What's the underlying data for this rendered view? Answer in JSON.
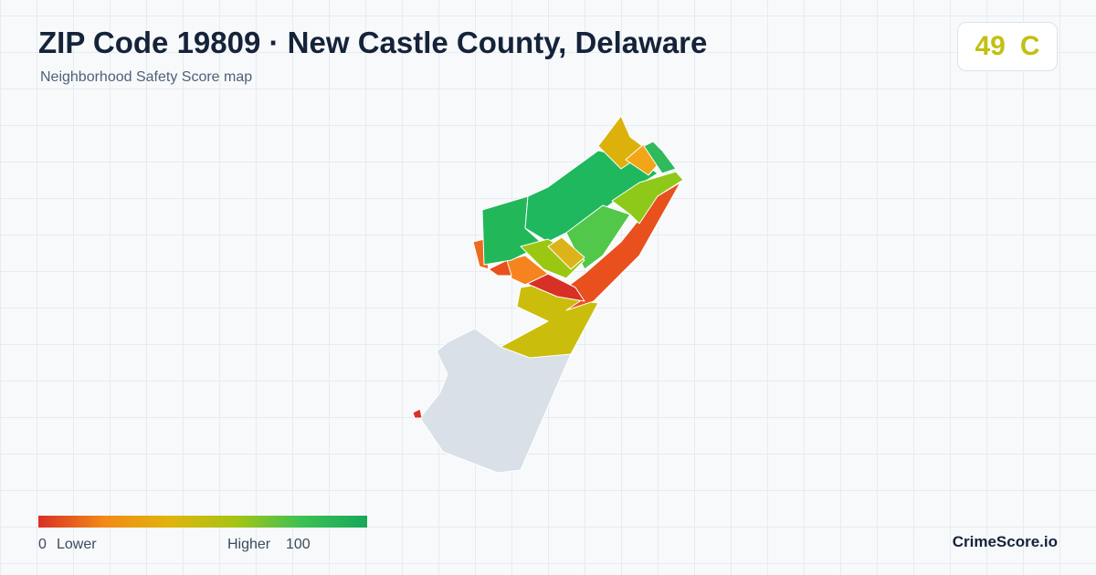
{
  "header": {
    "title": "ZIP Code 19809 · New Castle County, Delaware",
    "subtitle": "Neighborhood Safety Score map"
  },
  "score": {
    "value": 49,
    "grade": "C"
  },
  "legend": {
    "min": 0,
    "min_label": "Lower",
    "max_label": "Higher",
    "max": 100
  },
  "brand": "CrimeScore.io"
}
